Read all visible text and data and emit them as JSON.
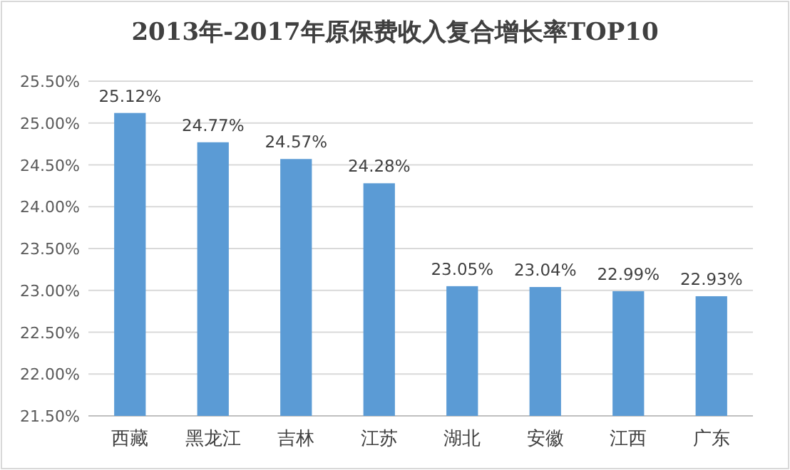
{
  "chart_data": {
    "type": "bar",
    "title": "2013年-2017年原保费收入复合增长率TOP10",
    "categories": [
      "西藏",
      "黑龙江",
      "吉林",
      "江苏",
      "湖北",
      "安徽",
      "江西",
      "广东"
    ],
    "values": [
      25.12,
      24.77,
      24.57,
      24.28,
      23.05,
      23.04,
      22.99,
      22.93
    ],
    "value_labels": [
      "25.12%",
      "24.77%",
      "24.57%",
      "24.28%",
      "23.05%",
      "23.04%",
      "22.99%",
      "22.93%"
    ],
    "color": "#5b9bd5",
    "ylim": [
      21.5,
      25.5
    ],
    "yticks": [
      {
        "value": 21.5,
        "label": "21.50%"
      },
      {
        "value": 22,
        "label": "22.00%"
      },
      {
        "value": 22.5,
        "label": "22.50%"
      },
      {
        "value": 23,
        "label": "23.00%"
      },
      {
        "value": 23.5,
        "label": "23.50%"
      },
      {
        "value": 24,
        "label": "24.00%"
      },
      {
        "value": 24.5,
        "label": "24.50%"
      },
      {
        "value": 25,
        "label": "25.00%"
      },
      {
        "value": 25.5,
        "label": "25.50%"
      }
    ],
    "grid": "y"
  }
}
